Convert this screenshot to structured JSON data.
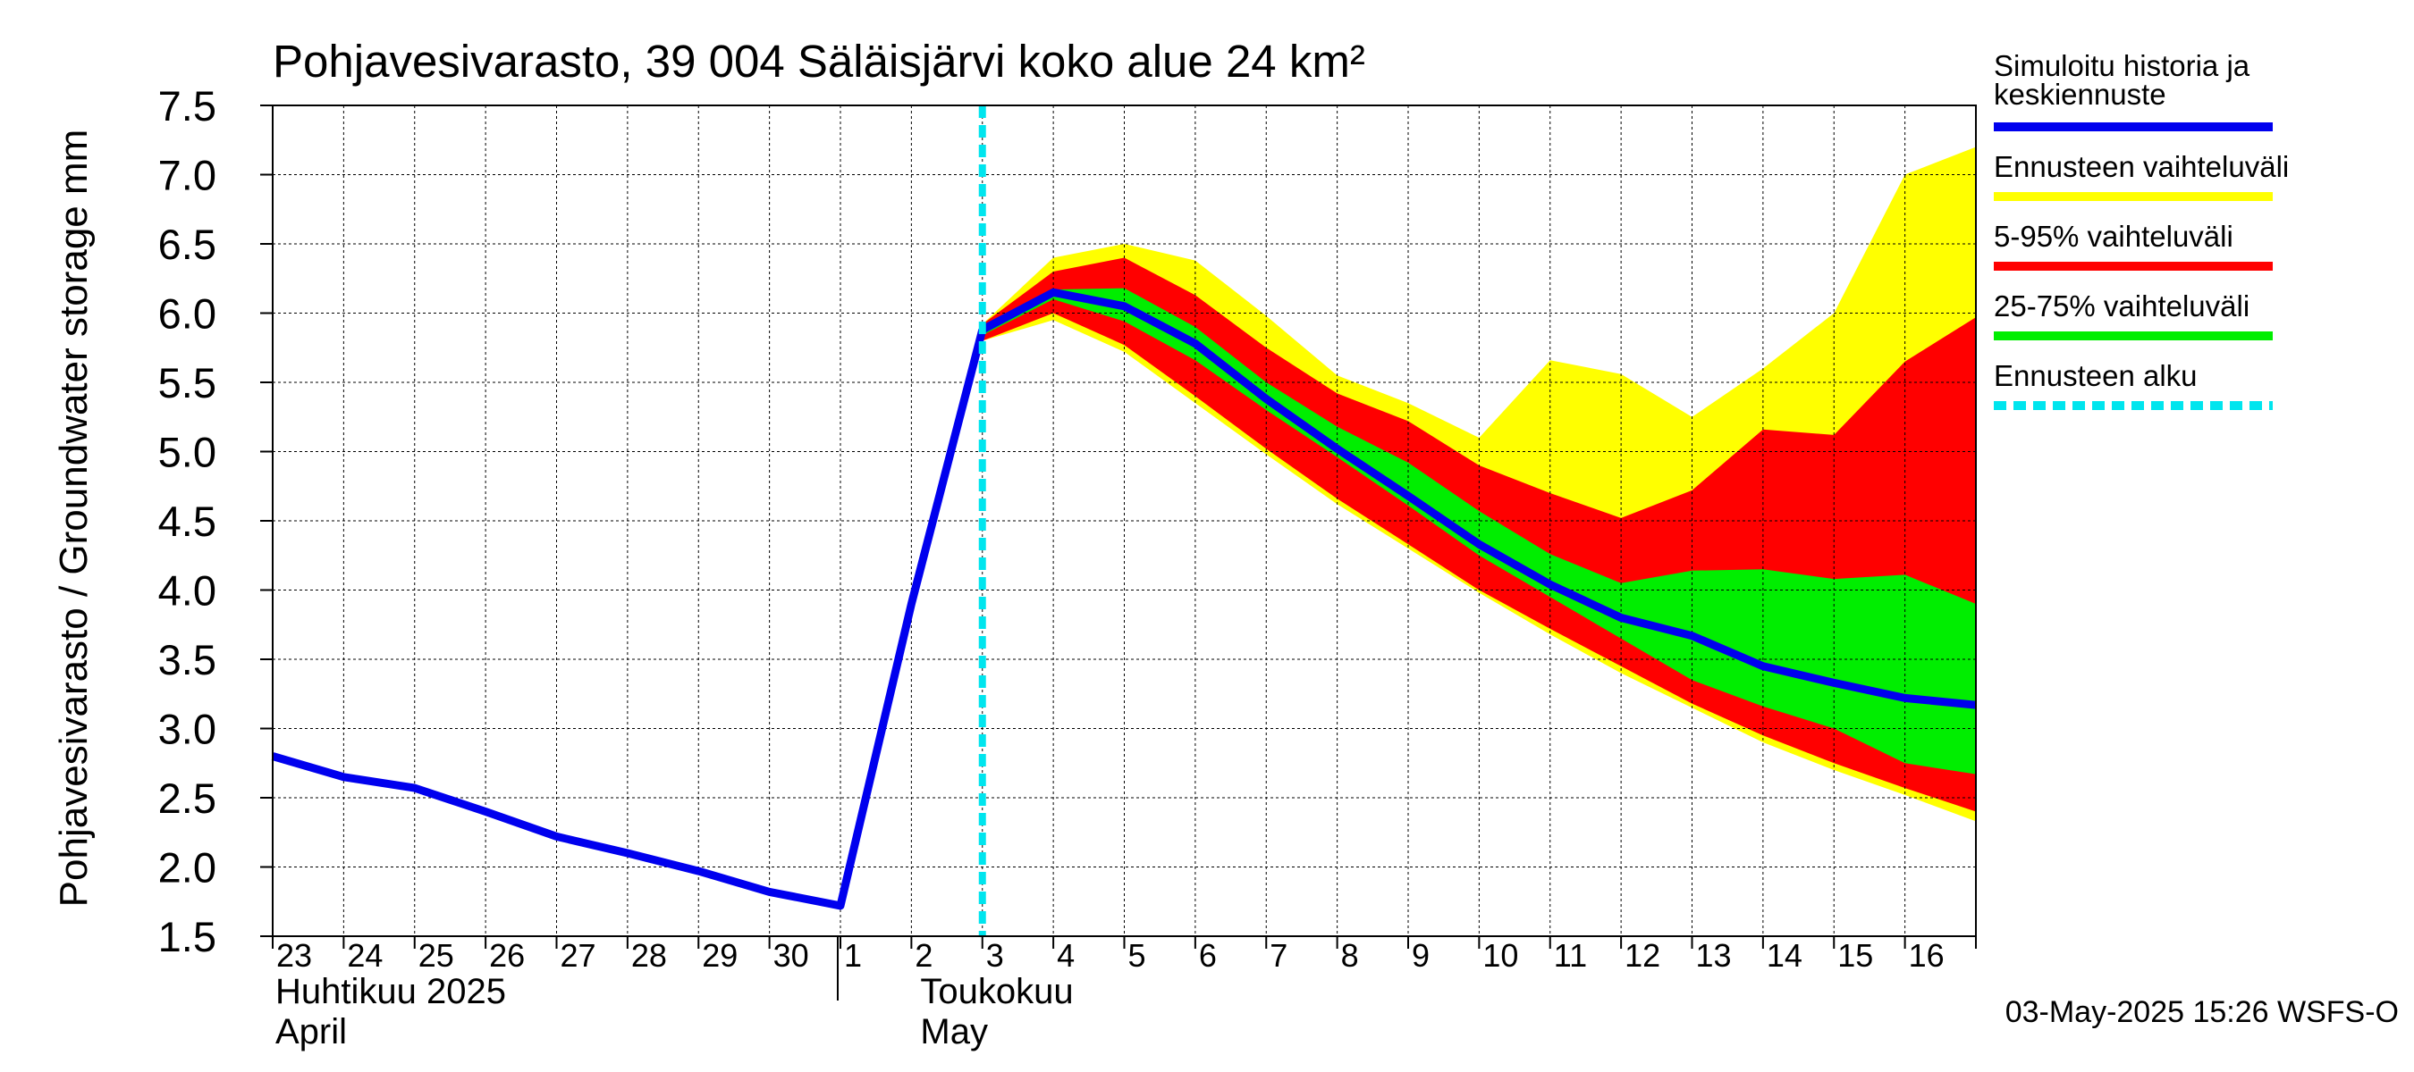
{
  "chart_data": {
    "type": "area",
    "title": "Pohjavesivarasto, 39 004 Säläisjärvi koko alue 24 km²",
    "ylabel": "Pohjavesivarasto / Groundwater storage   mm",
    "ylim": [
      1.5,
      7.5
    ],
    "y_ticks": [
      "1.5",
      "2.0",
      "2.5",
      "3.0",
      "3.5",
      "4.0",
      "4.5",
      "5.0",
      "5.5",
      "6.0",
      "6.5",
      "7.0",
      "7.5"
    ],
    "x_tick_labels": [
      "23",
      "24",
      "25",
      "26",
      "27",
      "28",
      "29",
      "30",
      "1",
      "2",
      "3",
      "4",
      "5",
      "6",
      "7",
      "8",
      "9",
      "10",
      "11",
      "12",
      "13",
      "14",
      "15",
      "16"
    ],
    "month_labels": [
      {
        "line1": "Huhtikuu  2025",
        "line2": "April"
      },
      {
        "line1": "Toukokuu",
        "line2": "May"
      }
    ],
    "footer": "03-May-2025 15:26 WSFS-O",
    "grid": true,
    "legend_position": "right",
    "colors": {
      "history": "#0000ee",
      "full_range": "#ffff00",
      "p5_95": "#ff0000",
      "p25_75": "#00ee00",
      "forecast_start": "#00e5ee"
    },
    "legend": [
      {
        "key": "history",
        "label_lines": [
          "Simuloitu historia ja",
          "keskiennuste"
        ]
      },
      {
        "key": "full_range",
        "label_lines": [
          "Ennusteen vaihteluväli"
        ]
      },
      {
        "key": "p5_95",
        "label_lines": [
          "5-95% vaihteluväli"
        ]
      },
      {
        "key": "p25_75",
        "label_lines": [
          "25-75% vaihteluväli"
        ]
      },
      {
        "key": "forecast_start",
        "label_lines": [
          "Ennusteen alku"
        ]
      }
    ],
    "x_range_days": [
      0,
      24
    ],
    "forecast_start_day": 10,
    "history": {
      "x": [
        0,
        1,
        2,
        3,
        4,
        5,
        6,
        7,
        8,
        9,
        10
      ],
      "y": [
        2.8,
        2.65,
        2.57,
        2.4,
        2.22,
        2.1,
        1.97,
        1.82,
        1.72,
        3.9,
        5.88
      ]
    },
    "forecast_x": [
      10,
      11,
      12,
      13,
      14,
      15,
      16,
      17,
      18,
      19,
      20,
      21,
      22,
      23,
      24
    ],
    "series": [
      {
        "key": "median",
        "values": [
          5.88,
          6.15,
          6.05,
          5.78,
          5.38,
          5.02,
          4.68,
          4.33,
          4.04,
          3.8,
          3.67,
          3.45,
          3.33,
          3.22,
          3.17
        ]
      },
      {
        "key": "full_max",
        "values": [
          5.92,
          6.4,
          6.5,
          6.38,
          5.98,
          5.55,
          5.35,
          5.1,
          5.66,
          5.56,
          5.25,
          5.6,
          6.0,
          7.0,
          7.2
        ]
      },
      {
        "key": "full_min",
        "values": [
          5.8,
          5.95,
          5.72,
          5.35,
          4.98,
          4.62,
          4.3,
          3.98,
          3.68,
          3.4,
          3.15,
          2.9,
          2.7,
          2.52,
          2.33
        ]
      },
      {
        "key": "p95",
        "values": [
          5.92,
          6.3,
          6.4,
          6.13,
          5.75,
          5.42,
          5.22,
          4.9,
          4.7,
          4.52,
          4.72,
          5.16,
          5.12,
          5.65,
          5.97
        ]
      },
      {
        "key": "p5",
        "values": [
          5.8,
          6.0,
          5.77,
          5.4,
          5.02,
          4.66,
          4.33,
          4.0,
          3.72,
          3.45,
          3.18,
          2.95,
          2.75,
          2.57,
          2.4
        ]
      },
      {
        "key": "p75",
        "values": [
          5.9,
          6.17,
          6.18,
          5.9,
          5.5,
          5.18,
          4.92,
          4.57,
          4.26,
          4.05,
          4.14,
          4.15,
          4.08,
          4.11,
          3.9
        ]
      },
      {
        "key": "p25",
        "values": [
          5.84,
          6.1,
          5.94,
          5.66,
          5.3,
          4.96,
          4.61,
          4.25,
          3.95,
          3.65,
          3.35,
          3.16,
          3.0,
          2.75,
          2.67
        ]
      }
    ]
  }
}
